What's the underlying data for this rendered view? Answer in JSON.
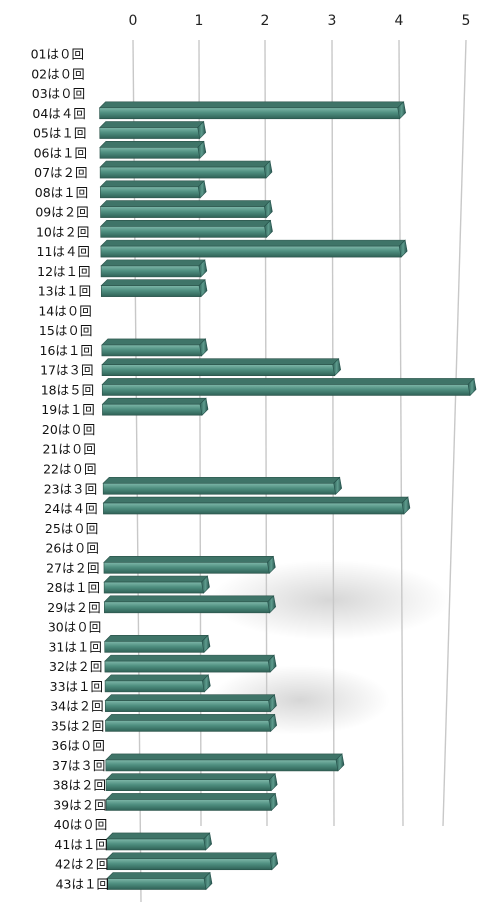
{
  "chart_data": {
    "type": "bar",
    "orientation": "horizontal",
    "style": "3d",
    "color": "#4f8f80",
    "grid": true,
    "xlim": [
      0,
      5
    ],
    "x_ticks": [
      "0",
      "1",
      "2",
      "3",
      "4",
      "5"
    ],
    "categories": [
      "01は０回",
      "02は０回",
      "03は０回",
      "04は４回",
      "05は１回",
      "06は１回",
      "07は２回",
      "08は１回",
      "09は２回",
      "10は２回",
      "11は４回",
      "12は１回",
      "13は１回",
      "14は０回",
      "15は０回",
      "16は１回",
      "17は３回",
      "18は５回",
      "19は１回",
      "20は０回",
      "21は０回",
      "22は０回",
      "23は３回",
      "24は４回",
      "25は０回",
      "26は０回",
      "27は２回",
      "28は１回",
      "29は２回",
      "30は０回",
      "31は１回",
      "32は２回",
      "33は１回",
      "34は２回",
      "35は２回",
      "36は０回",
      "37は３回",
      "38は２回",
      "39は２回",
      "40は０回",
      "41は１回",
      "42は２回",
      "43は１回"
    ],
    "values": [
      0,
      0,
      0,
      4,
      1,
      1,
      2,
      1,
      2,
      2,
      4,
      1,
      1,
      0,
      0,
      1,
      3,
      5,
      1,
      0,
      0,
      0,
      3,
      4,
      0,
      0,
      2,
      1,
      2,
      0,
      1,
      2,
      1,
      2,
      2,
      0,
      3,
      2,
      2,
      0,
      1,
      2,
      1
    ]
  }
}
